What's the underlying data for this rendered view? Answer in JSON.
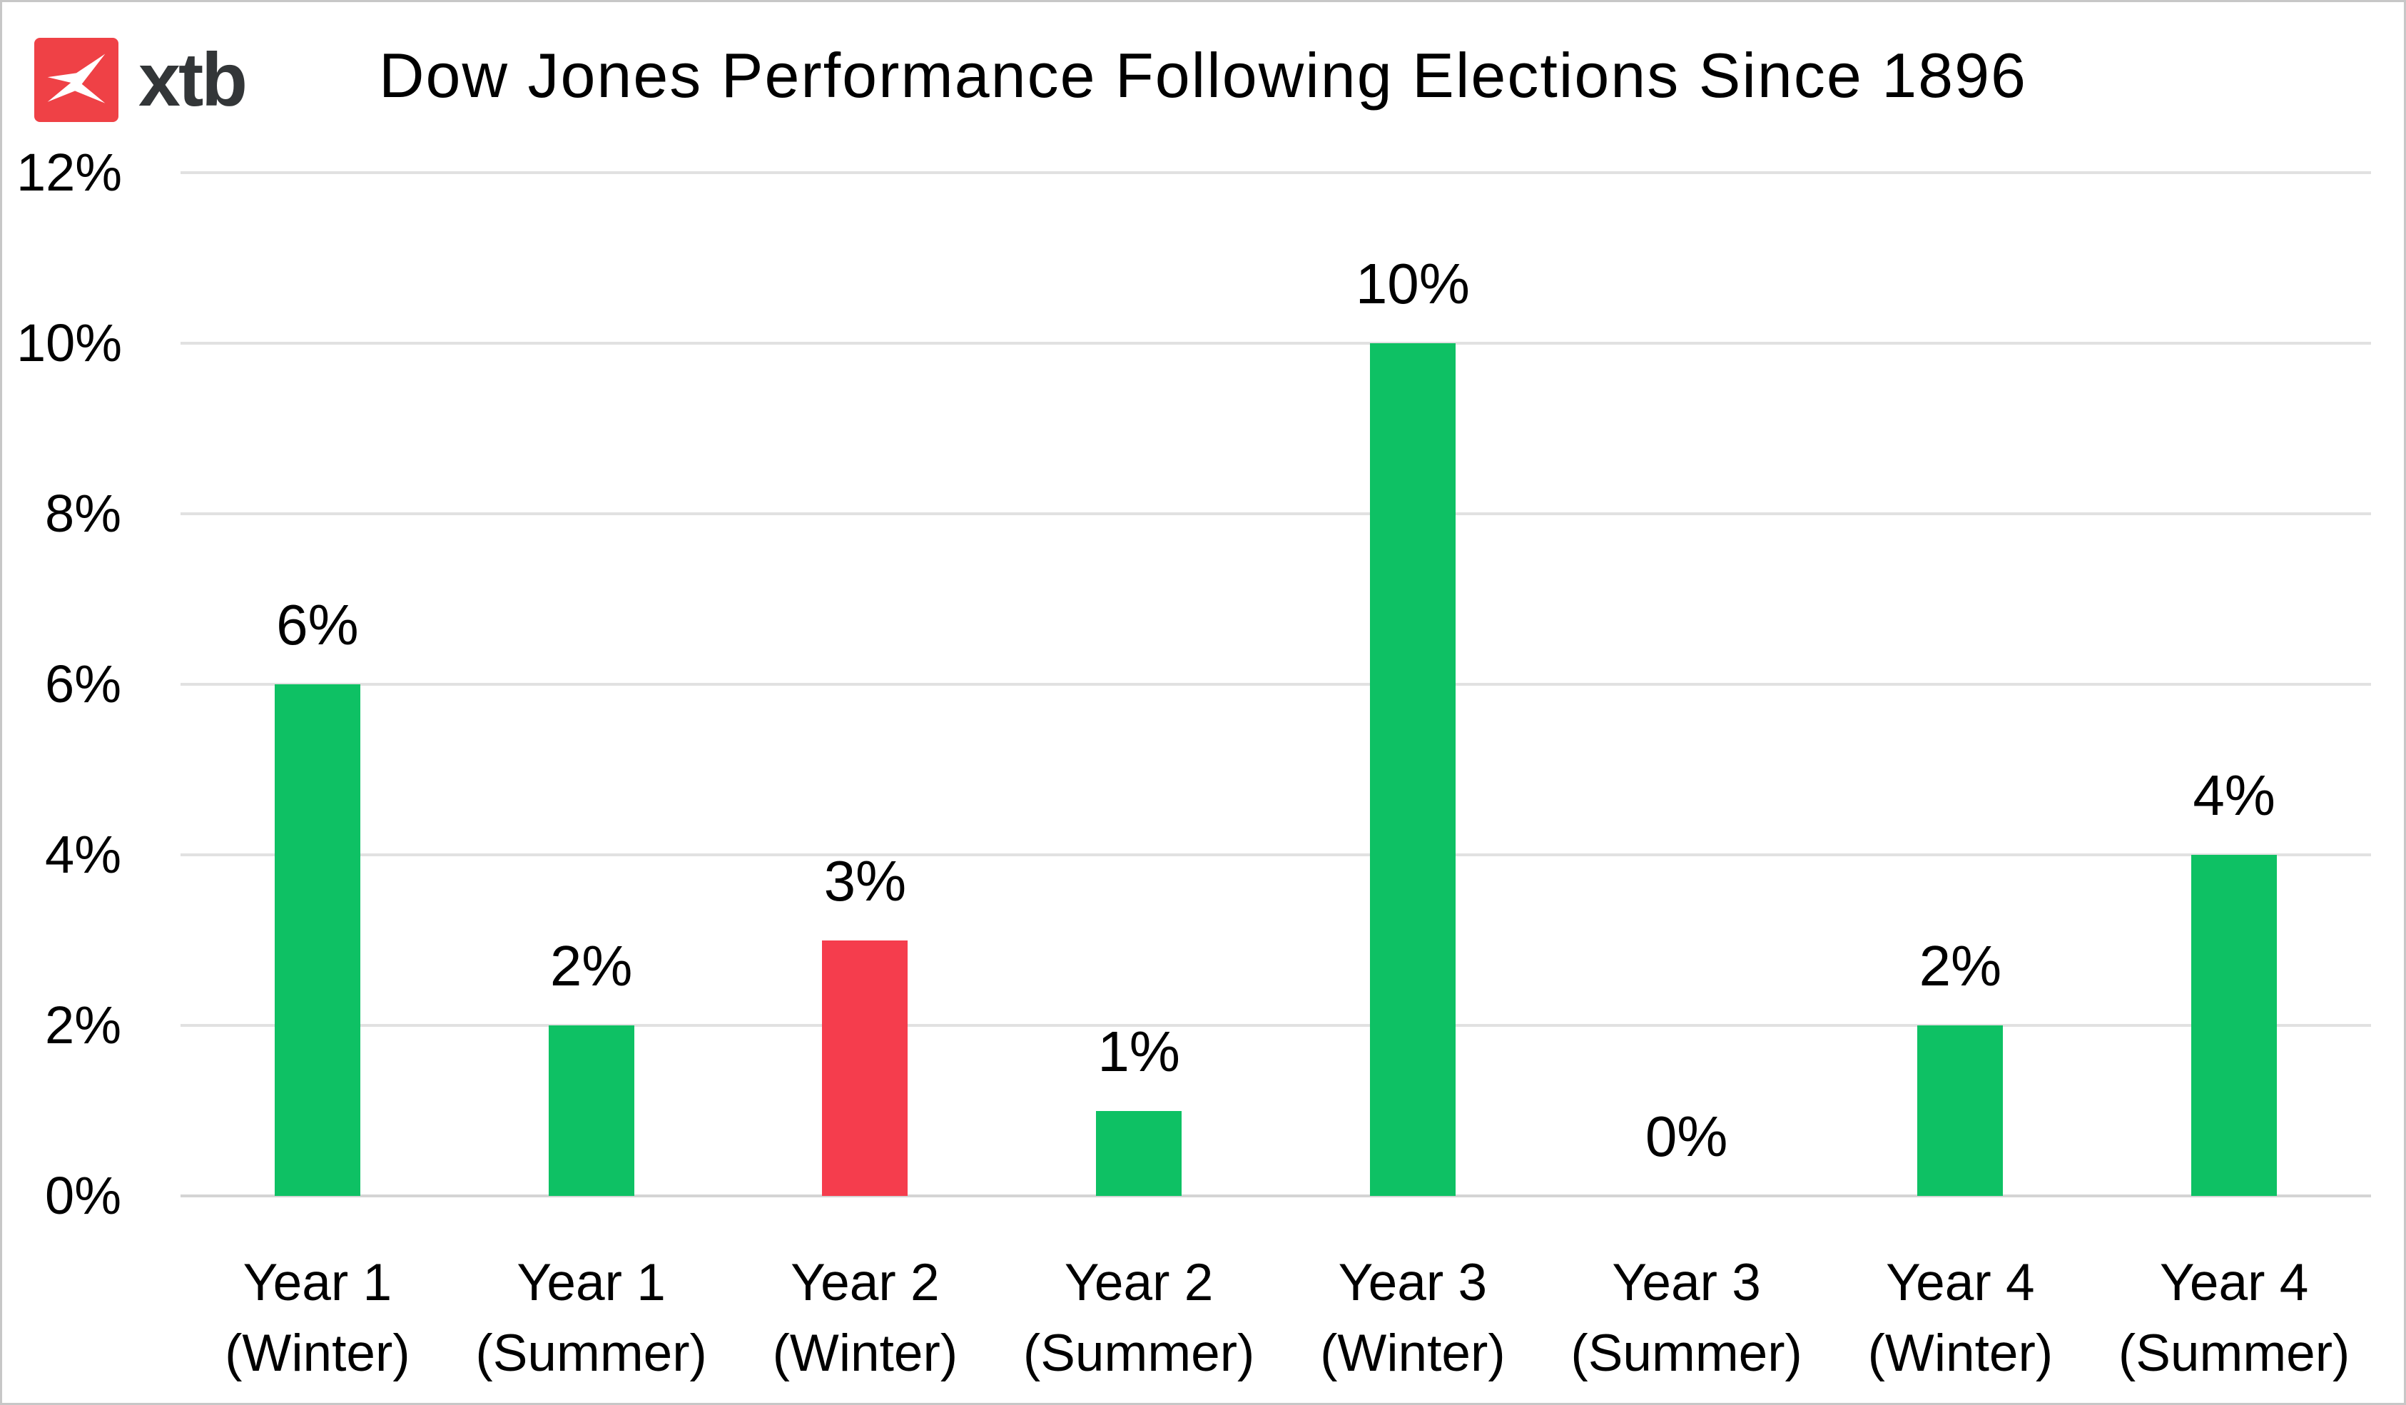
{
  "logo": {
    "brand_text": "xtb"
  },
  "header": {
    "title": "Dow Jones Performance Following Elections Since 1896"
  },
  "colors": {
    "positive_green": "#0EC164",
    "negative_red": "#F53D4D",
    "logo_red": "#EF4146",
    "logo_text": "#333638",
    "gridline": "#E1E1E1",
    "baseline": "#D4D4D4",
    "text": "#000000",
    "border": "#C7C7C7"
  },
  "chart_data": {
    "type": "bar",
    "title": "Dow Jones Performance Following Elections Since 1896",
    "categories": [
      "Year 1 (Winter)",
      "Year 1 (Summer)",
      "Year 2 (Winter)",
      "Year 2 (Summer)",
      "Year 3 (Winter)",
      "Year 3 (Summer)",
      "Year 4 (Winter)",
      "Year 4 (Summer)"
    ],
    "category_lines": [
      [
        "Year 1",
        "(Winter)"
      ],
      [
        "Year 1",
        "(Summer)"
      ],
      [
        "Year 2",
        "(Winter)"
      ],
      [
        "Year 2",
        "(Summer)"
      ],
      [
        "Year 3",
        "(Winter)"
      ],
      [
        "Year 3",
        "(Summer)"
      ],
      [
        "Year 4",
        "(Winter)"
      ],
      [
        "Year 4",
        "(Summer)"
      ]
    ],
    "values": [
      6,
      2,
      3,
      1,
      10,
      0,
      2,
      4
    ],
    "data_labels": [
      "6%",
      "2%",
      "3%",
      "1%",
      "10%",
      "0%",
      "2%",
      "4%"
    ],
    "bar_color_keys": [
      "positive_green",
      "positive_green",
      "negative_red",
      "positive_green",
      "positive_green",
      "positive_green",
      "positive_green",
      "positive_green"
    ],
    "xlabel": "",
    "ylabel": "",
    "ylim": [
      0,
      12
    ],
    "yticks": [
      {
        "value": 0,
        "label": "0%"
      },
      {
        "value": 2,
        "label": "2%"
      },
      {
        "value": 4,
        "label": "4%"
      },
      {
        "value": 6,
        "label": "6%"
      },
      {
        "value": 8,
        "label": "8%"
      },
      {
        "value": 10,
        "label": "10%"
      },
      {
        "value": 12,
        "label": "12%"
      }
    ],
    "grid": "horizontal",
    "legend": "none"
  }
}
